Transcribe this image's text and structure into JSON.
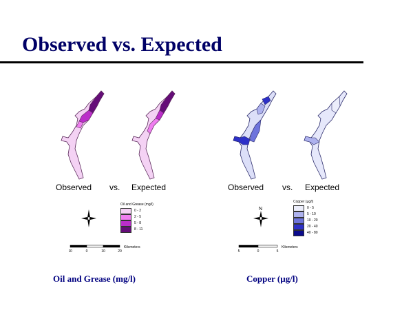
{
  "slide": {
    "title": "Observed vs. Expected"
  },
  "panels": [
    {
      "id": "oil",
      "labels": {
        "observed": "Observed",
        "vs": "vs.",
        "expected": "Expected"
      },
      "caption": "Oil and Grease (mg/l)",
      "legend": {
        "title": "Oil and Grease (mg/l)",
        "classes": [
          {
            "label": "0 - 2",
            "color": "#f4d2f4"
          },
          {
            "label": "2 - 5",
            "color": "#f07ef0"
          },
          {
            "label": "5 - 8",
            "color": "#bb2ec9"
          },
          {
            "label": "8 - 11",
            "color": "#650d78"
          }
        ]
      },
      "scale_bar": {
        "ticks": [
          "10",
          "0",
          "10",
          "20"
        ],
        "unit": "Kilometers"
      },
      "colors": {
        "outline": "#5a2a5a",
        "fill_main": "#f4d2f4"
      }
    },
    {
      "id": "copper",
      "labels": {
        "observed": "Observed",
        "vs": "vs.",
        "expected": "Expected"
      },
      "caption": "Copper (µg/l)",
      "legend": {
        "title": "Copper (µg/l)",
        "classes": [
          {
            "label": "0 - 5",
            "color": "#eceefb"
          },
          {
            "label": "5 - 10",
            "color": "#aeb2ee"
          },
          {
            "label": "10 - 20",
            "color": "#6e74dc"
          },
          {
            "label": "20 - 40",
            "color": "#2d30c8"
          },
          {
            "label": "40 - 80",
            "color": "#0b0b8c"
          }
        ]
      },
      "scale_bar": {
        "ticks": [
          "5",
          "0",
          "5"
        ],
        "unit": "Kilometers"
      },
      "colors": {
        "outline": "#2a2a6a",
        "fill_main": "#dcdff8"
      }
    }
  ],
  "icons": [
    "north-arrow-icon",
    "north-arrow-icon"
  ]
}
